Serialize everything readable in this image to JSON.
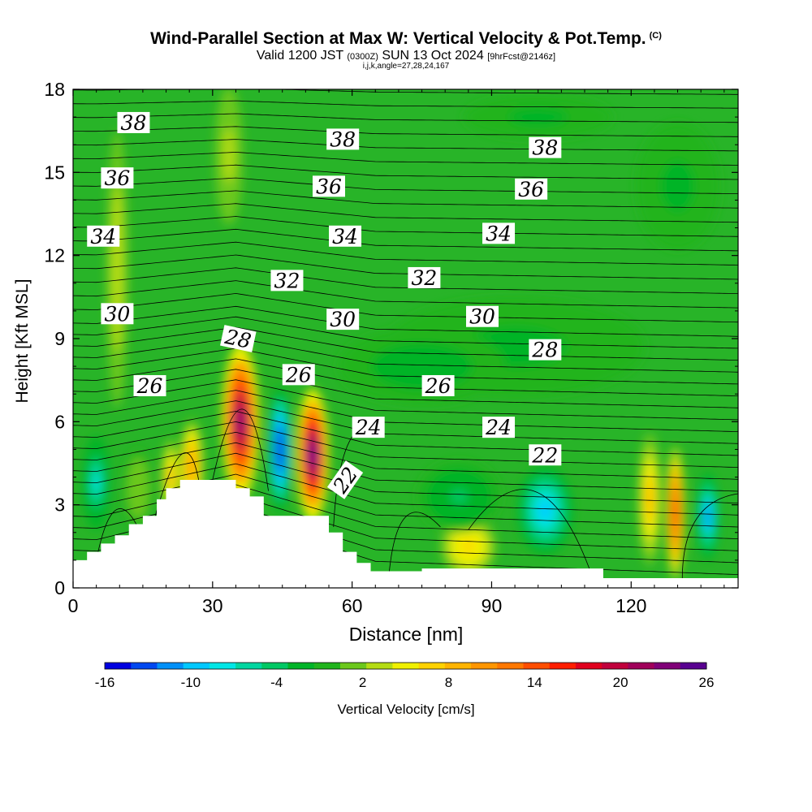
{
  "header": {
    "title": "Wind-Parallel Section at Max W: Vertical Velocity & Pot.Temp.",
    "title_mark": "(C)",
    "valid_prefix": "Valid 1200 JST",
    "valid_utc": "(0300Z)",
    "valid_date": "SUN 13 Oct 2024",
    "forecast": "[9hrFcst@2146z]",
    "indices": "i,j,k,angle=27,28,24,167"
  },
  "chart_data": {
    "type": "heatmap",
    "title": "Wind-Parallel Section at Max W: Vertical Velocity & Pot.Temp.",
    "xlabel": "Distance [nm]",
    "ylabel": "Height [Kft MSL]",
    "xlim": [
      0,
      143
    ],
    "ylim": [
      0,
      18
    ],
    "x_ticks": [
      "0",
      "30",
      "60",
      "90",
      "120"
    ],
    "y_ticks": [
      "0",
      "3",
      "6",
      "9",
      "12",
      "15",
      "18"
    ],
    "colorbar": {
      "label": "Vertical Velocity [cm/s]",
      "tick_labels": [
        "-16",
        "-10",
        "-4",
        "2",
        "8",
        "14",
        "20",
        "26"
      ],
      "colors": [
        "#0000e0",
        "#0048f0",
        "#0090f8",
        "#00c8ff",
        "#00e6e6",
        "#00d6a0",
        "#00c864",
        "#00b428",
        "#20b41c",
        "#6cc81c",
        "#b4dc14",
        "#f0f000",
        "#ffd200",
        "#ffb400",
        "#ff9600",
        "#ff7800",
        "#ff4e00",
        "#ff1e00",
        "#e0001e",
        "#c0003c",
        "#a0005a",
        "#800078",
        "#580090"
      ],
      "range": [
        -16,
        26
      ]
    },
    "background_color": "#28b428",
    "theta_contours": [
      {
        "label": "22",
        "level": 22
      },
      {
        "label": "24",
        "level": 24
      },
      {
        "label": "26",
        "level": 26
      },
      {
        "label": "28",
        "level": 28
      },
      {
        "label": "30",
        "level": 30
      },
      {
        "label": "32",
        "level": 32
      },
      {
        "label": "34",
        "level": 34
      },
      {
        "label": "36",
        "level": 36
      },
      {
        "label": "38",
        "level": 38
      }
    ],
    "contour_labels": [
      {
        "text": "38",
        "x": 13,
        "y": 16.8
      },
      {
        "text": "38",
        "x": 58,
        "y": 16.2
      },
      {
        "text": "38",
        "x": 101.5,
        "y": 15.9
      },
      {
        "text": "36",
        "x": 9.5,
        "y": 14.8
      },
      {
        "text": "36",
        "x": 55,
        "y": 14.5
      },
      {
        "text": "36",
        "x": 98.5,
        "y": 14.4
      },
      {
        "text": "34",
        "x": 6.5,
        "y": 12.7
      },
      {
        "text": "34",
        "x": 58.5,
        "y": 12.7
      },
      {
        "text": "34",
        "x": 91.5,
        "y": 12.8
      },
      {
        "text": "32",
        "x": 46,
        "y": 11.1
      },
      {
        "text": "32",
        "x": 75.5,
        "y": 11.2
      },
      {
        "text": "30",
        "x": 9.5,
        "y": 9.9
      },
      {
        "text": "30",
        "x": 58,
        "y": 9.7
      },
      {
        "text": "30",
        "x": 88,
        "y": 9.8
      },
      {
        "text": "28",
        "x": 35.5,
        "y": 9.0
      },
      {
        "text": "28",
        "x": 101.5,
        "y": 8.6
      },
      {
        "text": "26",
        "x": 16.5,
        "y": 7.3
      },
      {
        "text": "26",
        "x": 48.5,
        "y": 7.7
      },
      {
        "text": "26",
        "x": 78.5,
        "y": 7.3
      },
      {
        "text": "24",
        "x": 63.5,
        "y": 5.8
      },
      {
        "text": "24",
        "x": 91.5,
        "y": 5.8
      },
      {
        "text": "22",
        "x": 101.5,
        "y": 4.8
      },
      {
        "text": "22",
        "x": 58.5,
        "y": 3.9
      }
    ],
    "terrain_profile": [
      [
        0,
        1
      ],
      [
        3,
        1
      ],
      [
        3,
        1.3
      ],
      [
        6,
        1.3
      ],
      [
        6,
        1.6
      ],
      [
        9,
        1.6
      ],
      [
        9,
        1.9
      ],
      [
        12,
        1.9
      ],
      [
        12,
        2.3
      ],
      [
        15,
        2.3
      ],
      [
        15,
        2.6
      ],
      [
        18,
        2.6
      ],
      [
        18,
        3.2
      ],
      [
        20,
        3.2
      ],
      [
        20,
        3.6
      ],
      [
        23,
        3.6
      ],
      [
        23,
        3.9
      ],
      [
        35,
        3.9
      ],
      [
        35,
        3.6
      ],
      [
        38,
        3.6
      ],
      [
        38,
        3.3
      ],
      [
        41,
        3.3
      ],
      [
        41,
        2.6
      ],
      [
        55,
        2.6
      ],
      [
        55,
        2
      ],
      [
        58,
        2
      ],
      [
        58,
        1.3
      ],
      [
        61,
        1.3
      ],
      [
        61,
        0.9
      ],
      [
        64,
        0.9
      ],
      [
        64,
        0.6
      ],
      [
        75,
        0.6
      ],
      [
        75,
        0.7
      ],
      [
        114,
        0.7
      ],
      [
        114,
        0.35
      ],
      [
        143,
        0.35
      ]
    ],
    "w_features": [
      {
        "x": 36,
        "y": 6,
        "rx": 4,
        "ry": 2.8,
        "w": 24
      },
      {
        "x": 44.5,
        "y": 5,
        "rx": 2.5,
        "ry": 2.3,
        "w": -16
      },
      {
        "x": 51.5,
        "y": 4.8,
        "rx": 3.5,
        "ry": 2.4,
        "w": 26
      },
      {
        "x": 25.5,
        "y": 4.4,
        "rx": 2.5,
        "ry": 1.7,
        "w": 11
      },
      {
        "x": 21,
        "y": 4,
        "rx": 2,
        "ry": 1.4,
        "w": 8
      },
      {
        "x": 14,
        "y": 3.6,
        "rx": 3,
        "ry": 1.4,
        "w": 2
      },
      {
        "x": 5,
        "y": 3.8,
        "rx": 3,
        "ry": 1.7,
        "w": -8
      },
      {
        "x": 9.5,
        "y": 11.5,
        "rx": 2.3,
        "ry": 5,
        "w": 4
      },
      {
        "x": 33.5,
        "y": 15.6,
        "rx": 3,
        "ry": 2.5,
        "w": 3
      },
      {
        "x": 85,
        "y": 1.5,
        "rx": 6,
        "ry": 1.1,
        "w": 7
      },
      {
        "x": 101.5,
        "y": 2.8,
        "rx": 6,
        "ry": 1.6,
        "w": -9
      },
      {
        "x": 83,
        "y": 3.3,
        "rx": 9,
        "ry": 1.3,
        "w": -4
      },
      {
        "x": 124,
        "y": 3.2,
        "rx": 2.5,
        "ry": 2.4,
        "w": 8
      },
      {
        "x": 129.5,
        "y": 2.7,
        "rx": 2,
        "ry": 2.4,
        "w": 16
      },
      {
        "x": 136.5,
        "y": 2.6,
        "rx": 2.5,
        "ry": 1.6,
        "w": -11
      },
      {
        "x": 95,
        "y": 8.7,
        "rx": 28,
        "ry": 1.8,
        "w": -2
      },
      {
        "x": 75,
        "y": 8.0,
        "rx": 18,
        "ry": 1.4,
        "w": -3
      },
      {
        "x": 130,
        "y": 14.5,
        "rx": 9,
        "ry": 2.3,
        "w": -2
      },
      {
        "x": 100,
        "y": 17,
        "rx": 16,
        "ry": 0.8,
        "w": -2
      }
    ]
  }
}
